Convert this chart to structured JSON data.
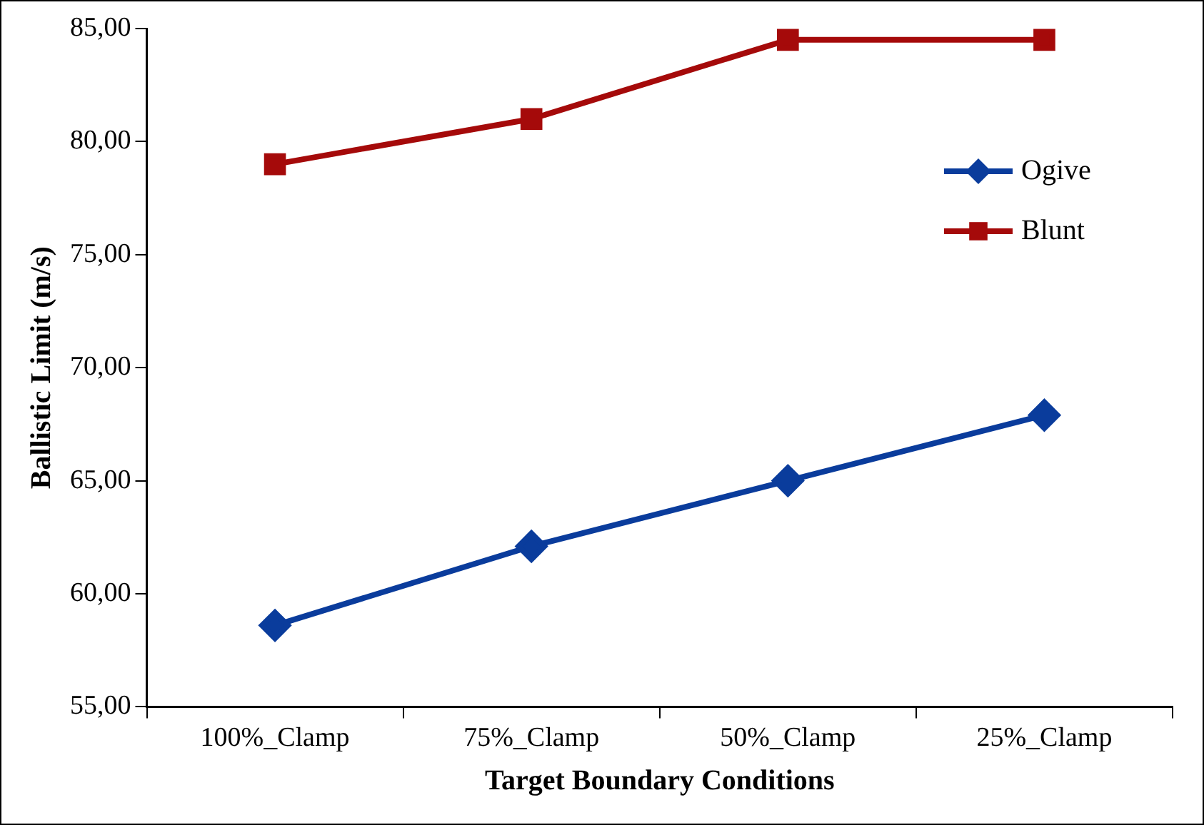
{
  "chart_data": {
    "type": "line",
    "xlabel": "Target Boundary Conditions",
    "ylabel": "Ballistic Limit (m/s)",
    "categories": [
      "100%_Clamp",
      "75%_Clamp",
      "50%_Clamp",
      "25%_Clamp"
    ],
    "series": [
      {
        "name": "Ogive",
        "color": "#0a3c9c",
        "marker": "diamond",
        "values": [
          58.6,
          62.1,
          65.0,
          67.9
        ]
      },
      {
        "name": "Blunt",
        "color": "#a50a0a",
        "marker": "square",
        "values": [
          79.0,
          81.0,
          84.5,
          84.5
        ]
      }
    ],
    "ylim": [
      55,
      85
    ],
    "yticks": [
      {
        "value": 55,
        "label": "55,00"
      },
      {
        "value": 60,
        "label": "60,00"
      },
      {
        "value": 65,
        "label": "65,00"
      },
      {
        "value": 70,
        "label": "70,00"
      },
      {
        "value": 75,
        "label": "75,00"
      },
      {
        "value": 80,
        "label": "80,00"
      },
      {
        "value": 85,
        "label": "85,00"
      }
    ],
    "grid": false,
    "legend": "top right",
    "line_style": "solid"
  }
}
